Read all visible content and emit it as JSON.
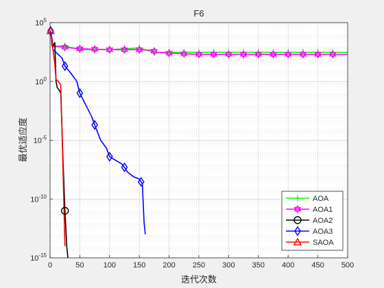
{
  "chart_data": {
    "type": "line",
    "title": "F6",
    "xlabel": "迭代次数",
    "ylabel": "最优适应度",
    "xlim": [
      0,
      500
    ],
    "ylim_log10": [
      -15,
      5
    ],
    "yscale": "log",
    "grid": true,
    "minor_grid": true,
    "x_ticks": [
      0,
      50,
      100,
      150,
      200,
      250,
      300,
      350,
      400,
      450,
      500
    ],
    "y_tick_exponents": [
      -15,
      -10,
      -5,
      0,
      5
    ],
    "y_tick_base": "10",
    "legend_position": "bottom-right",
    "series": [
      {
        "name": "AOA",
        "color": "#00ff00",
        "marker": "plus",
        "points": [
          [
            1,
            20000
          ],
          [
            5,
            1000
          ],
          [
            25,
            1000
          ],
          [
            50,
            500
          ],
          [
            100,
            500
          ],
          [
            150,
            700
          ],
          [
            175,
            300
          ],
          [
            200,
            300
          ],
          [
            250,
            300
          ],
          [
            300,
            300
          ],
          [
            350,
            300
          ],
          [
            400,
            300
          ],
          [
            450,
            300
          ],
          [
            500,
            300
          ]
        ],
        "marker_x": [
          25,
          50,
          75,
          100,
          125,
          150,
          175,
          200,
          225,
          250,
          275,
          300,
          325,
          350,
          375,
          400,
          425,
          450,
          475
        ]
      },
      {
        "name": "AOA1",
        "color": "#ff00ff",
        "marker": "hexagram",
        "points": [
          [
            1,
            20000
          ],
          [
            3,
            1000
          ],
          [
            25,
            800
          ],
          [
            50,
            600
          ],
          [
            100,
            500
          ],
          [
            150,
            500
          ],
          [
            170,
            450
          ],
          [
            180,
            300
          ],
          [
            200,
            250
          ],
          [
            250,
            200
          ],
          [
            300,
            200
          ],
          [
            350,
            200
          ],
          [
            400,
            200
          ],
          [
            450,
            200
          ],
          [
            500,
            200
          ]
        ],
        "marker_x": [
          25,
          50,
          75,
          100,
          125,
          150,
          175,
          200,
          225,
          250,
          275,
          300,
          325,
          350,
          375,
          400,
          425,
          450,
          475
        ]
      },
      {
        "name": "AOA2",
        "color": "#000000",
        "marker": "circle",
        "points": [
          [
            1,
            20000
          ],
          [
            5,
            1000
          ],
          [
            8,
            2000
          ],
          [
            10,
            1.0
          ],
          [
            12,
            0.3
          ],
          [
            15,
            0.2
          ],
          [
            18,
            0.1
          ],
          [
            20,
            0.0001
          ],
          [
            22,
            1e-07
          ],
          [
            25,
            1e-11
          ],
          [
            28,
            1e-14
          ],
          [
            30,
            1e-15
          ]
        ],
        "marker_x": [
          25
        ]
      },
      {
        "name": "AOA3",
        "color": "#0000ff",
        "marker": "diamond",
        "points": [
          [
            1,
            20000
          ],
          [
            5,
            500
          ],
          [
            20,
            100
          ],
          [
            25,
            20
          ],
          [
            35,
            5
          ],
          [
            45,
            1
          ],
          [
            50,
            0.1
          ],
          [
            60,
            0.01
          ],
          [
            70,
            0.001
          ],
          [
            75,
            0.0002
          ],
          [
            85,
            1e-05
          ],
          [
            95,
            2e-06
          ],
          [
            100,
            4e-07
          ],
          [
            110,
            2e-07
          ],
          [
            120,
            1e-07
          ],
          [
            125,
            5e-08
          ],
          [
            130,
            2e-08
          ],
          [
            140,
            8e-09
          ],
          [
            150,
            5e-09
          ],
          [
            155,
            2e-09
          ],
          [
            158,
            1e-12
          ],
          [
            160,
            1e-13
          ]
        ],
        "marker_x": [
          1,
          25,
          50,
          75,
          100,
          125,
          153
        ]
      },
      {
        "name": "SAOA",
        "color": "#ff0000",
        "marker": "triangle",
        "points": [
          [
            1,
            20000
          ],
          [
            5,
            500
          ],
          [
            8,
            30
          ],
          [
            10,
            1.5
          ],
          [
            14,
            1.0
          ],
          [
            18,
            0.5
          ],
          [
            20,
            0.0001
          ],
          [
            22,
            1e-08
          ],
          [
            25,
            1e-14
          ]
        ],
        "marker_x": [
          1
        ]
      }
    ]
  }
}
